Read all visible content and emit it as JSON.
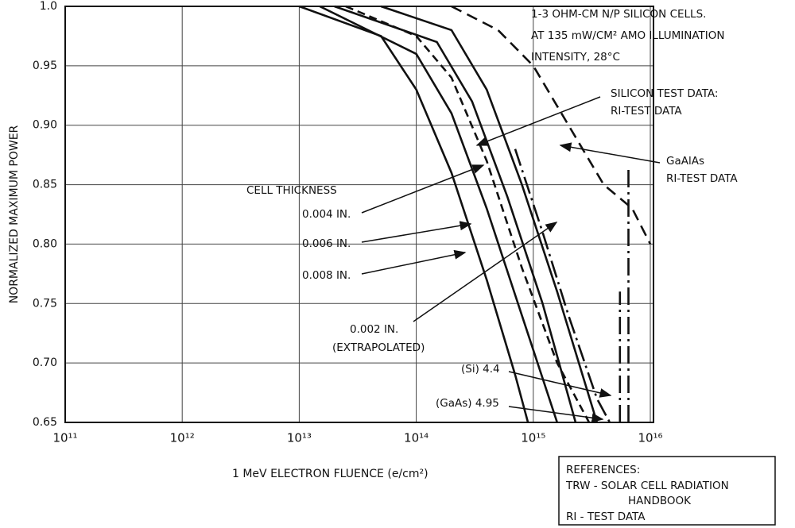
{
  "chart_data": {
    "type": "line",
    "ylabel": "NORMALIZED MAXIMUM POWER",
    "xlabel": "1 MeV ELECTRON FLUENCE (e/cm²)",
    "xscale": "log",
    "xlim": [
      100000000000.0,
      1e+16
    ],
    "xticks": [
      {
        "value": 100000000000.0,
        "label": "10¹¹"
      },
      {
        "value": 1000000000000.0,
        "label": "10¹²"
      },
      {
        "value": 10000000000000.0,
        "label": "10¹³"
      },
      {
        "value": 100000000000000.0,
        "label": "10¹⁴"
      },
      {
        "value": 1000000000000000.0,
        "label": "10¹⁵"
      },
      {
        "value": 1e+16,
        "label": "10¹⁶"
      }
    ],
    "ylim": [
      0.65,
      1.0
    ],
    "yticks": [
      0.65,
      {
        "value": 0.7,
        "label": "0.70"
      },
      0.75,
      {
        "value": 0.8,
        "label": "0.80"
      },
      0.85,
      {
        "value": 0.9,
        "label": "0.90"
      },
      0.95,
      {
        "value": 1,
        "label": "1.0"
      }
    ],
    "grid": true,
    "series": [
      {
        "color": "#111",
        "dash": "none",
        "x": [
          10000000000000.0,
          50000000000000.0,
          100000000000000.0,
          200000000000000.0,
          400000000000000.0,
          700000000000000.0,
          900000000000000.0
        ],
        "values": [
          1.0,
          0.975,
          0.93,
          0.86,
          0.77,
          0.69,
          0.65
        ]
      },
      {
        "color": "#111",
        "dash": "none",
        "x": [
          15000000000000.0,
          100000000000000.0,
          200000000000000.0,
          400000000000000.0,
          800000000000000.0,
          1600000000000000.0
        ],
        "values": [
          1.0,
          0.96,
          0.91,
          0.83,
          0.74,
          0.65
        ]
      },
      {
        "color": "#111",
        "dash": "none",
        "x": [
          20000000000000.0,
          150000000000000.0,
          300000000000000.0,
          600000000000000.0,
          1200000000000000.0,
          2300000000000000.0
        ],
        "values": [
          1.0,
          0.97,
          0.92,
          0.84,
          0.75,
          0.65
        ]
      },
      {
        "color": "#111",
        "dash": "10,6",
        "x": [
          25000000000000.0,
          100000000000000.0,
          200000000000000.0,
          400000000000000.0,
          800000000000000.0,
          1600000000000000.0,
          3000000000000000.0
        ],
        "values": [
          1.0,
          0.975,
          0.94,
          0.87,
          0.78,
          0.7,
          0.65
        ]
      },
      {
        "color": "#111",
        "dash": "none",
        "x": [
          50000000000000.0,
          200000000000000.0,
          400000000000000.0,
          800000000000000.0,
          1600000000000000.0,
          3500000000000000.0
        ],
        "values": [
          1.0,
          0.98,
          0.93,
          0.85,
          0.76,
          0.65
        ]
      },
      {
        "color": "#111",
        "dash": "22,6,3,6",
        "x": [
          700000000000000.0,
          1200000000000000.0,
          2000000000000000.0,
          3500000000000000.0,
          4500000000000000.0
        ],
        "values": [
          0.88,
          0.81,
          0.74,
          0.67,
          0.65
        ]
      },
      {
        "color": "#111",
        "dash": "14,8",
        "x": [
          200000000000000.0,
          500000000000000.0,
          1000000000000000.0,
          2000000000000000.0,
          4000000000000000.0,
          7000000000000000.0,
          1e+16
        ],
        "values": [
          1.0,
          0.98,
          0.95,
          0.9,
          0.85,
          0.83,
          0.8
        ]
      },
      {
        "color": "#111",
        "dash": "22,6,3,6",
        "x": [
          5500000000000000.0,
          5500000000000000.0
        ],
        "values": [
          0.65,
          0.76
        ]
      },
      {
        "color": "#111",
        "dash": "22,6,3,6",
        "x": [
          6500000000000000.0,
          6500000000000000.0
        ],
        "values": [
          0.65,
          0.865
        ]
      }
    ],
    "annotations": {
      "conditions": [
        "1-3 OHM-CM N/P SILICON CELLS.",
        "AT 135 mW/CM² AMO ILLUMINATION",
        "INTENSITY, 28°C"
      ],
      "silicon": [
        "SILICON TEST DATA:",
        "RI-TEST DATA"
      ],
      "cell_thickness": "CELL THICKNESS",
      "t004": "0.004 IN.",
      "t006": "0.006 IN.",
      "t008": "0.008 IN.",
      "t002": [
        "0.002 IN.",
        "(EXTRAPOLATED)"
      ],
      "gaalas": [
        "GaAlAs",
        "RI-TEST DATA"
      ],
      "si": "(Si)   4.4",
      "gaas": "(GaAs) 4.95"
    },
    "references": [
      "REFERENCES:",
      "TRW - SOLAR CELL RADIATION",
      "HANDBOOK",
      "RI - TEST DATA"
    ]
  }
}
